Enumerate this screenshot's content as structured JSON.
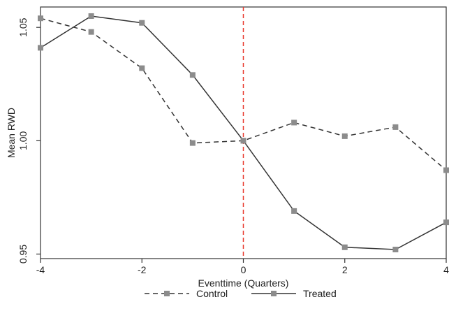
{
  "chart_data": {
    "type": "line",
    "title": "",
    "xlabel": "Eventtime (Quarters)",
    "ylabel": "Mean RWD",
    "x": [
      -4,
      -3,
      -2,
      -1,
      0,
      1,
      2,
      3,
      4
    ],
    "xlim": [
      -4,
      4
    ],
    "ylim": [
      0.948,
      1.059
    ],
    "x_ticks": [
      -4,
      -2,
      0,
      2,
      4
    ],
    "x_tick_labels": [
      "-4",
      "-2",
      "0",
      "2",
      "4"
    ],
    "y_ticks": [
      0.95,
      1.0,
      1.05
    ],
    "y_tick_labels": [
      "0.95",
      "1.00",
      "1.05"
    ],
    "grid": false,
    "legend_position": "bottom",
    "reference_line": {
      "x": 0,
      "color": "#e8392d",
      "style": "dashed"
    },
    "series": [
      {
        "name": "Control",
        "style": "dashed",
        "marker": "square",
        "color": "#333333",
        "marker_color": "#8c8c8c",
        "values": [
          1.054,
          1.048,
          1.032,
          0.999,
          1.0,
          1.008,
          1.002,
          1.006,
          0.987
        ]
      },
      {
        "name": "Treated",
        "style": "solid",
        "marker": "square",
        "color": "#333333",
        "marker_color": "#8c8c8c",
        "values": [
          1.041,
          1.055,
          1.052,
          1.029,
          1.0,
          0.969,
          0.953,
          0.952,
          0.964
        ]
      }
    ]
  }
}
